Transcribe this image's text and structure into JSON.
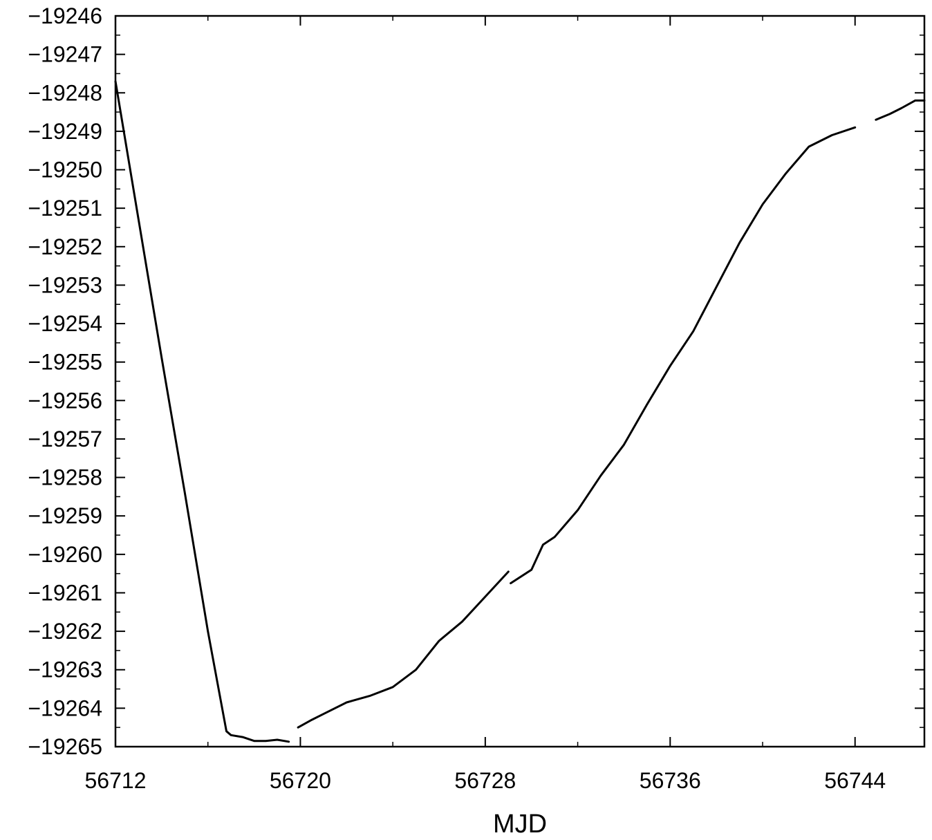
{
  "chart_data": {
    "type": "line",
    "title": "",
    "xlabel": "MJD",
    "ylabel": "",
    "xlim": [
      56712,
      56747
    ],
    "ylim": [
      -19265,
      -19246
    ],
    "x_ticks": [
      56712,
      56720,
      56728,
      56736,
      56744
    ],
    "x_tick_labels": [
      "56712",
      "56720",
      "56728",
      "56736",
      "56744"
    ],
    "y_ticks": [
      -19246,
      -19247,
      -19248,
      -19249,
      -19250,
      -19251,
      -19252,
      -19253,
      -19254,
      -19255,
      -19256,
      -19257,
      -19258,
      -19259,
      -19260,
      -19261,
      -19262,
      -19263,
      -19264,
      -19265
    ],
    "y_tick_labels": [
      "−19246",
      "−19247",
      "−19248",
      "−19249",
      "−19250",
      "−19251",
      "−19252",
      "−19253",
      "−19254",
      "−19255",
      "−19256",
      "−19257",
      "−19258",
      "−19259",
      "−19260",
      "−19261",
      "−19262",
      "−19263",
      "−19264",
      "−19265"
    ],
    "grid": false,
    "legend": "none",
    "line_color": "#000000",
    "segments": [
      {
        "x": [
          56712.0,
          56713.0,
          56714.0,
          56715.0,
          56716.0,
          56716.8,
          56717.0,
          56717.5,
          56718.0,
          56718.5,
          56719.0,
          56719.5
        ],
        "y": [
          -19247.7,
          -19251.3,
          -19254.9,
          -19258.4,
          -19262.0,
          -19264.6,
          -19264.7,
          -19264.75,
          -19264.85,
          -19264.85,
          -19264.82,
          -19264.87
        ]
      },
      {
        "x": [
          56719.9,
          56720.5,
          56721.0,
          56722.0,
          56723.0,
          56724.0,
          56725.0,
          56726.0,
          56727.0,
          56728.0,
          56729.0
        ],
        "y": [
          -19264.5,
          -19264.3,
          -19264.15,
          -19263.85,
          -19263.68,
          -19263.45,
          -19263.0,
          -19262.25,
          -19261.75,
          -19261.1,
          -19260.45
        ]
      },
      {
        "x": [
          56729.1,
          56730.0,
          56730.5,
          56731.0,
          56732.0,
          56733.0,
          56734.0,
          56735.0,
          56736.0,
          56737.0,
          56738.0,
          56739.0,
          56740.0,
          56741.0,
          56742.0,
          56743.0,
          56744.0
        ],
        "y": [
          -19260.75,
          -19260.4,
          -19259.75,
          -19259.55,
          -19258.85,
          -19257.95,
          -19257.15,
          -19256.1,
          -19255.1,
          -19254.2,
          -19253.05,
          -19251.9,
          -19250.9,
          -19250.1,
          -19249.4,
          -19249.1,
          -19248.9
        ]
      },
      {
        "x": [
          56744.9,
          56745.5,
          56746.0,
          56746.6,
          56747.0
        ],
        "y": [
          -19248.7,
          -19248.55,
          -19248.4,
          -19248.2,
          -19248.2
        ]
      }
    ]
  }
}
